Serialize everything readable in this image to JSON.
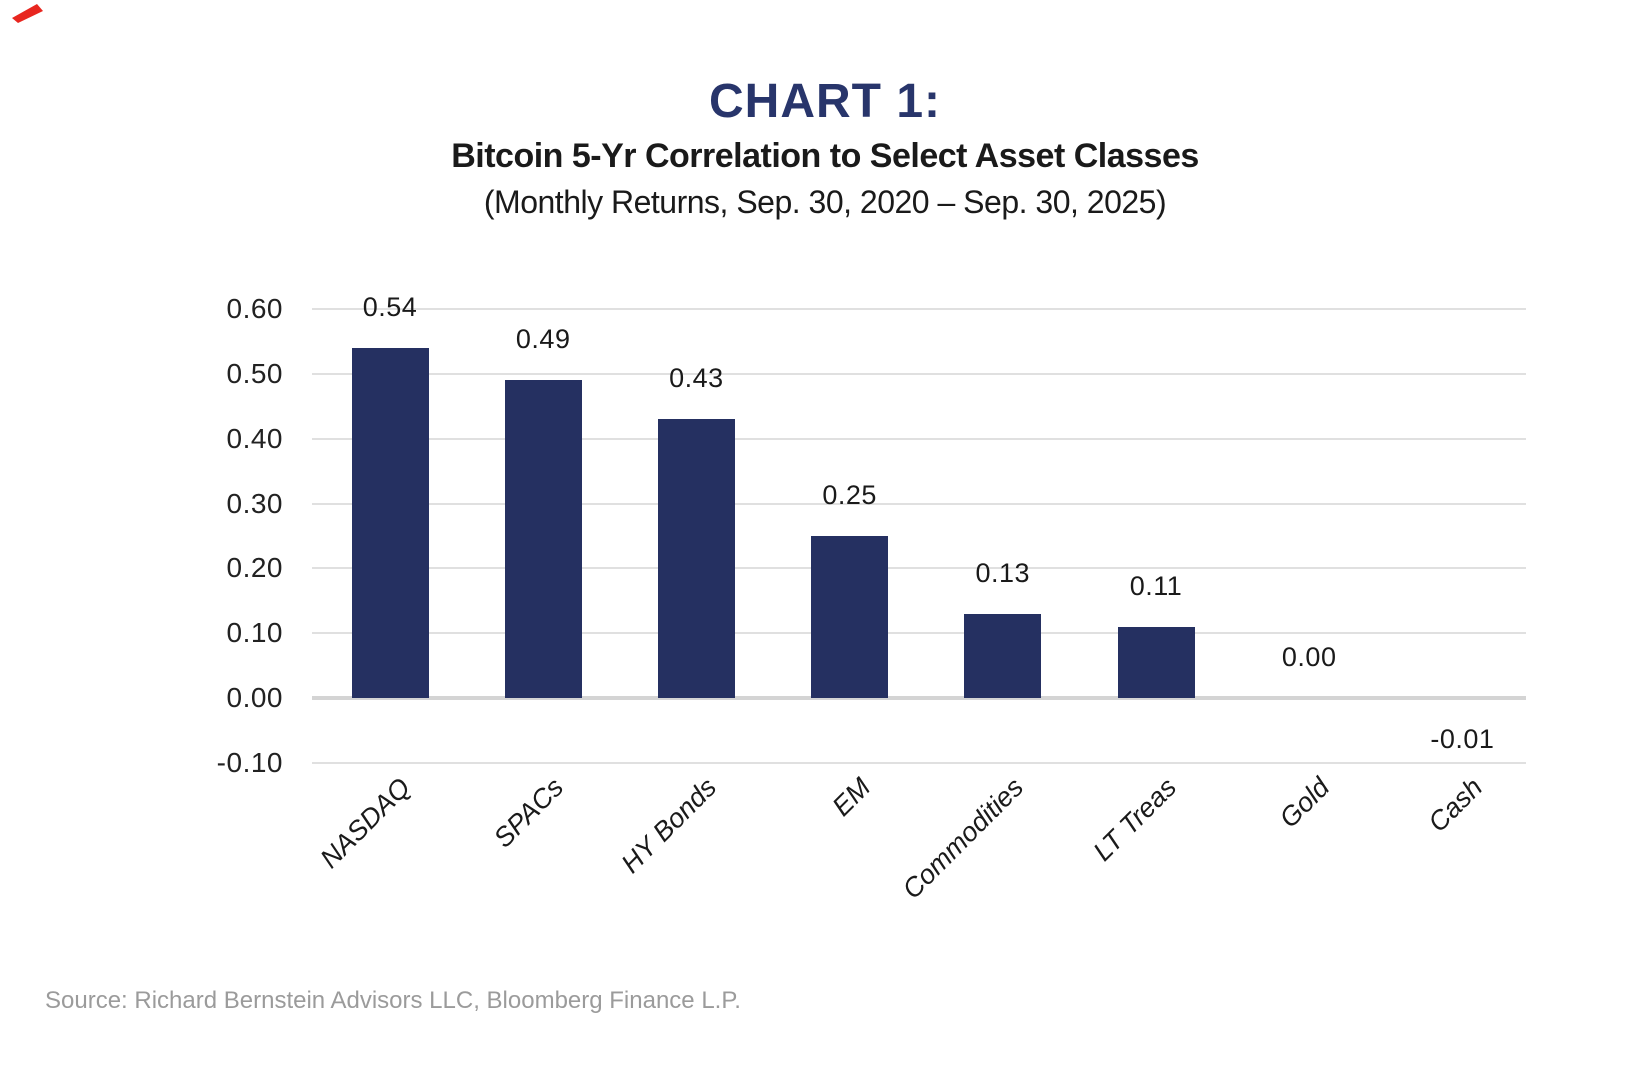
{
  "page": {
    "title": "CHART 1:",
    "subtitle": "Bitcoin 5-Yr Correlation to Select Asset Classes",
    "caption": "(Monthly Returns, Sep. 30, 2020 – Sep. 30, 2025)",
    "source": "Source: Richard Bernstein Advisors LLC, Bloomberg Finance L.P."
  },
  "colors": {
    "bar": "#253061",
    "title_text": "#28356B",
    "body_text": "#1A1A1A",
    "gridline": "#E0E0E0",
    "zero_line": "#D4D4D4",
    "source_text": "#9B9B9B",
    "corner_mark": "#E8261F"
  },
  "chart_data": {
    "type": "bar",
    "title": "CHART 1:",
    "subtitle": "Bitcoin 5-Yr Correlation to Select Asset Classes",
    "caption": "(Monthly Returns, Sep. 30, 2020 – Sep. 30, 2025)",
    "categories": [
      "NASDAQ",
      "SPACs",
      "HY Bonds",
      "EM",
      "Commodities",
      "LT Treas",
      "Gold",
      "Cash"
    ],
    "values": [
      0.54,
      0.49,
      0.43,
      0.25,
      0.13,
      0.11,
      0.0,
      -0.01
    ],
    "value_labels": [
      "0.54",
      "0.49",
      "0.43",
      "0.25",
      "0.13",
      "0.11",
      "0.00",
      "-0.01"
    ],
    "y_ticks": [
      0.6,
      0.5,
      0.4,
      0.3,
      0.2,
      0.1,
      0.0,
      -0.1
    ],
    "y_tick_labels": [
      "0.60",
      "0.50",
      "0.40",
      "0.30",
      "0.20",
      "0.10",
      "0.00",
      "-0.10"
    ],
    "ylim": [
      -0.1,
      0.6
    ],
    "xlabel": "",
    "ylabel": "",
    "grid": true,
    "legend": false,
    "x_label_rotation_deg": 45,
    "source": "Source: Richard Bernstein Advisors LLC, Bloomberg Finance L.P."
  }
}
